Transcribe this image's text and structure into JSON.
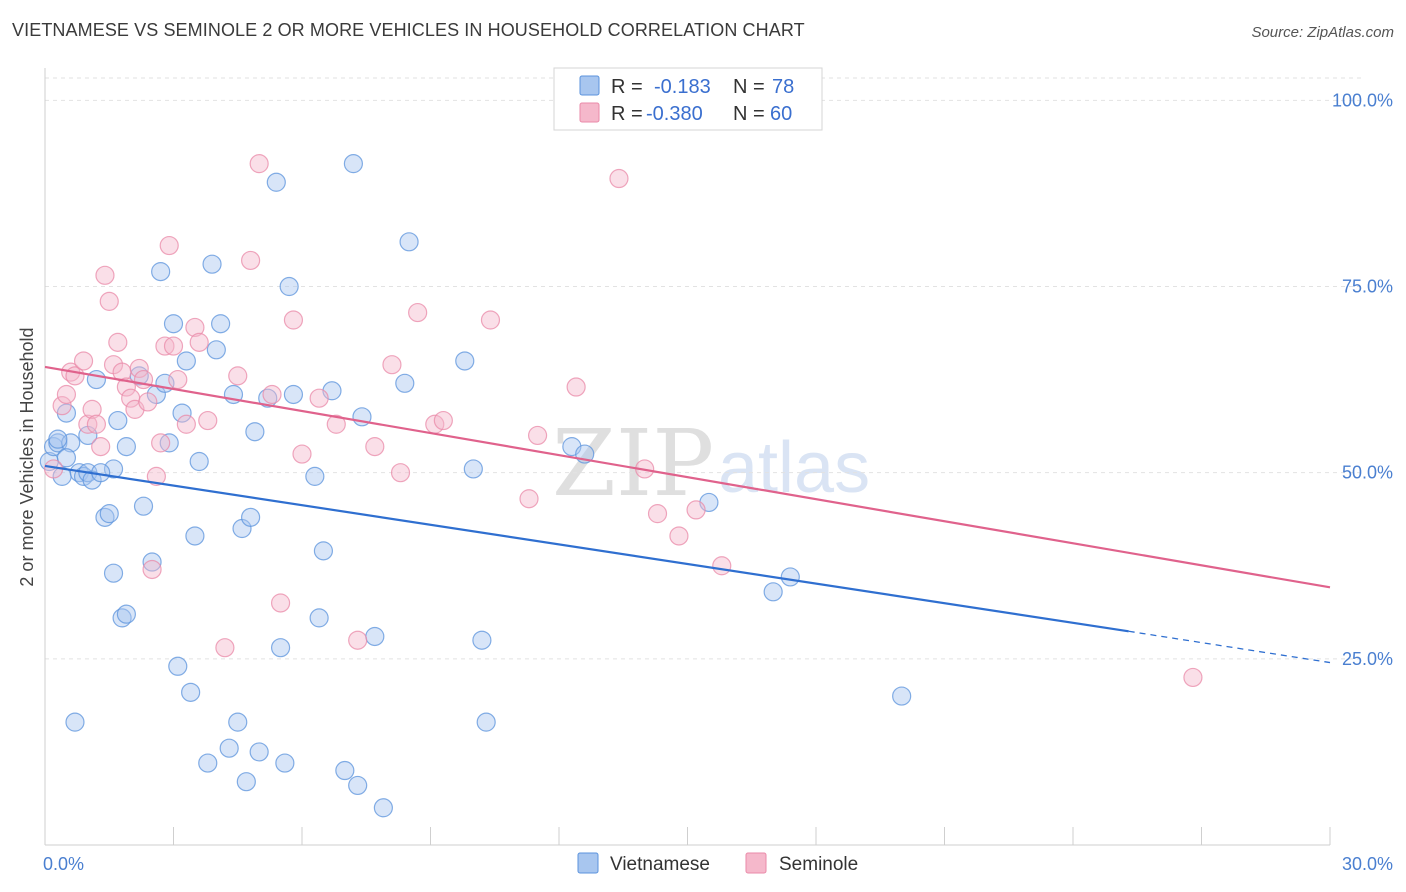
{
  "header": {
    "title": "VIETNAMESE VS SEMINOLE 2 OR MORE VEHICLES IN HOUSEHOLD CORRELATION CHART",
    "source": "Source: ZipAtlas.com"
  },
  "watermark": {
    "zip": "ZIP",
    "atlas": "atlas"
  },
  "legend": {
    "rows": [
      {
        "r_label": "R =",
        "r_value": "-0.183",
        "n_label": "N =",
        "n_value": "78",
        "color": "#a8c6ef"
      },
      {
        "r_label": "R =",
        "r_value": "-0.380",
        "n_label": "N =",
        "n_value": "60",
        "color": "#f5b8cb"
      }
    ]
  },
  "bottom_legend": [
    {
      "label": "Vietnamese",
      "color": "#a8c6ef"
    },
    {
      "label": "Seminole",
      "color": "#f5b8cb"
    }
  ],
  "chart_data": {
    "type": "scatter",
    "title": "VIETNAMESE VS SEMINOLE 2 OR MORE VEHICLES IN HOUSEHOLD CORRELATION CHART",
    "xlabel": "",
    "ylabel": "2 or more Vehicles in Household",
    "xlim": [
      0,
      30
    ],
    "ylim": [
      0,
      103
    ],
    "x_tick_labels": [
      {
        "value": 0,
        "label": "0.0%"
      },
      {
        "value": 30,
        "label": "30.0%"
      }
    ],
    "y_tick_labels": [
      {
        "value": 25,
        "label": "25.0%"
      },
      {
        "value": 50,
        "label": "50.0%"
      },
      {
        "value": 75,
        "label": "75.0%"
      },
      {
        "value": 100,
        "label": "100.0%"
      }
    ],
    "grid": true,
    "series": [
      {
        "name": "Vietnamese",
        "color": "#5b93dc",
        "fill": "#a8c6ef",
        "trend": {
          "x0": 0,
          "y0": 50.9,
          "x1": 25.3,
          "y1": 28.7,
          "dash_to_x": 30,
          "dash_to_y": 24.5,
          "color": "#2f6fd0"
        },
        "points": [
          [
            0.1,
            51.5
          ],
          [
            0.2,
            53.5
          ],
          [
            0.3,
            54
          ],
          [
            0.4,
            49.5
          ],
          [
            0.5,
            58
          ],
          [
            0.6,
            54
          ],
          [
            0.8,
            50
          ],
          [
            0.9,
            49.5
          ],
          [
            1.0,
            50
          ],
          [
            1.1,
            49
          ],
          [
            1.2,
            62.5
          ],
          [
            1.4,
            44
          ],
          [
            1.5,
            44.5
          ],
          [
            1.6,
            50.5
          ],
          [
            1.7,
            57
          ],
          [
            1.6,
            36.5
          ],
          [
            1.8,
            30.5
          ],
          [
            1.9,
            31
          ],
          [
            1.9,
            53.5
          ],
          [
            2.2,
            63
          ],
          [
            2.3,
            45.5
          ],
          [
            2.5,
            38
          ],
          [
            2.6,
            60.5
          ],
          [
            2.7,
            77
          ],
          [
            2.8,
            62
          ],
          [
            2.9,
            54
          ],
          [
            3.0,
            70
          ],
          [
            3.1,
            24
          ],
          [
            3.2,
            58
          ],
          [
            3.3,
            65
          ],
          [
            3.4,
            20.5
          ],
          [
            3.5,
            41.5
          ],
          [
            3.6,
            51.5
          ],
          [
            3.8,
            11
          ],
          [
            3.9,
            78
          ],
          [
            4.0,
            66.5
          ],
          [
            4.1,
            70
          ],
          [
            4.3,
            13
          ],
          [
            4.4,
            60.5
          ],
          [
            4.5,
            16.5
          ],
          [
            4.6,
            42.5
          ],
          [
            4.7,
            8.5
          ],
          [
            4.8,
            44
          ],
          [
            4.9,
            55.5
          ],
          [
            5.0,
            12.5
          ],
          [
            5.2,
            60
          ],
          [
            5.4,
            89
          ],
          [
            5.5,
            26.5
          ],
          [
            5.6,
            11
          ],
          [
            5.7,
            75
          ],
          [
            5.8,
            60.5
          ],
          [
            6.3,
            49.5
          ],
          [
            6.4,
            30.5
          ],
          [
            6.5,
            39.5
          ],
          [
            6.7,
            61
          ],
          [
            7.0,
            10
          ],
          [
            7.2,
            91.5
          ],
          [
            7.3,
            8
          ],
          [
            7.4,
            57.5
          ],
          [
            7.7,
            28
          ],
          [
            7.9,
            5
          ],
          [
            8.4,
            62
          ],
          [
            8.5,
            81
          ],
          [
            9.8,
            65
          ],
          [
            10.0,
            50.5
          ],
          [
            10.2,
            27.5
          ],
          [
            10.3,
            16.5
          ],
          [
            12.3,
            53.5
          ],
          [
            12.6,
            52.5
          ],
          [
            15.5,
            46
          ],
          [
            17.0,
            34
          ],
          [
            17.4,
            36
          ],
          [
            20.0,
            20
          ],
          [
            0.7,
            16.5
          ],
          [
            0.3,
            54.5
          ],
          [
            0.5,
            52
          ],
          [
            1.0,
            55
          ],
          [
            1.3,
            50
          ]
        ]
      },
      {
        "name": "Seminole",
        "color": "#ea8aa8",
        "fill": "#f5b8cb",
        "trend": {
          "x0": 0,
          "y0": 64.2,
          "x1": 30,
          "y1": 34.6,
          "color": "#e0628c"
        },
        "points": [
          [
            0.2,
            50.5
          ],
          [
            0.4,
            59
          ],
          [
            0.5,
            60.5
          ],
          [
            0.6,
            63.5
          ],
          [
            0.7,
            63
          ],
          [
            0.9,
            65
          ],
          [
            1.0,
            56.5
          ],
          [
            1.1,
            58.5
          ],
          [
            1.2,
            56.5
          ],
          [
            1.3,
            53.5
          ],
          [
            1.4,
            76.5
          ],
          [
            1.5,
            73
          ],
          [
            1.6,
            64.5
          ],
          [
            1.7,
            67.5
          ],
          [
            1.8,
            63.5
          ],
          [
            1.9,
            61.5
          ],
          [
            2.0,
            60
          ],
          [
            2.1,
            58.5
          ],
          [
            2.2,
            64
          ],
          [
            2.3,
            62.5
          ],
          [
            2.4,
            59.5
          ],
          [
            2.5,
            37
          ],
          [
            2.6,
            49.5
          ],
          [
            2.7,
            54
          ],
          [
            2.8,
            67
          ],
          [
            2.9,
            80.5
          ],
          [
            3.0,
            67
          ],
          [
            3.1,
            62.5
          ],
          [
            3.3,
            56.5
          ],
          [
            3.5,
            69.5
          ],
          [
            3.6,
            67.5
          ],
          [
            3.8,
            57
          ],
          [
            4.2,
            26.5
          ],
          [
            4.5,
            63
          ],
          [
            4.8,
            78.5
          ],
          [
            5.0,
            91.5
          ],
          [
            5.3,
            60.5
          ],
          [
            5.5,
            32.5
          ],
          [
            5.8,
            70.5
          ],
          [
            6.0,
            52.5
          ],
          [
            6.4,
            60
          ],
          [
            6.8,
            56.5
          ],
          [
            7.3,
            27.5
          ],
          [
            7.7,
            53.5
          ],
          [
            8.1,
            64.5
          ],
          [
            8.3,
            50
          ],
          [
            8.7,
            71.5
          ],
          [
            9.1,
            56.5
          ],
          [
            9.3,
            57
          ],
          [
            10.4,
            70.5
          ],
          [
            11.3,
            46.5
          ],
          [
            11.5,
            55
          ],
          [
            12.4,
            61.5
          ],
          [
            13.4,
            89.5
          ],
          [
            14.0,
            50.5
          ],
          [
            14.3,
            44.5
          ],
          [
            14.8,
            41.5
          ],
          [
            15.2,
            45
          ],
          [
            15.8,
            37.5
          ],
          [
            26.8,
            22.5
          ]
        ]
      }
    ]
  }
}
